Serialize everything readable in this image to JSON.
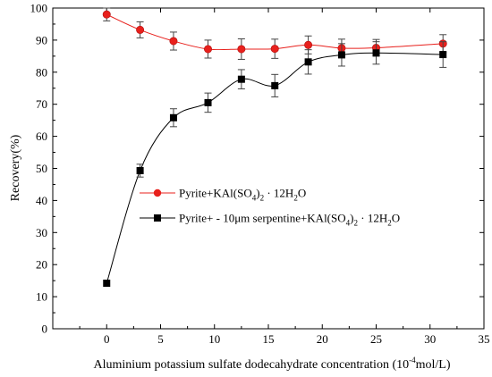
{
  "chart_data": {
    "type": "line",
    "xlabel": "Aluminium potassium sulfate dodecahydrate concentration (10",
    "xlabel_sup": "-4",
    "xlabel_tail": "mol/L)",
    "ylabel": "Recovery(%)",
    "xlim": [
      -5,
      35
    ],
    "ylim": [
      0,
      100
    ],
    "x_ticks": [
      "0",
      "5",
      "10",
      "15",
      "20",
      "25",
      "30",
      "35"
    ],
    "y_ticks": [
      "0",
      "10",
      "20",
      "30",
      "40",
      "50",
      "60",
      "70",
      "80",
      "90",
      "100"
    ],
    "grid": false,
    "legend_position": "middle-left",
    "series": [
      {
        "name": "Pyrite+KAl(SO4)2 · 12H2O",
        "legend": {
          "prefix": "Pyrite+KAl(SO",
          "s1": "4",
          "mid": ")",
          "s2": "2",
          "dot": " · ",
          "h": "12H",
          "s3": "2",
          "tail": "O"
        },
        "color": "#e8201c",
        "marker": "circle",
        "x": [
          0,
          3.1,
          6.2,
          9.4,
          12.5,
          15.6,
          18.7,
          21.8,
          25.0,
          31.2
        ],
        "y": [
          98.0,
          93.2,
          89.7,
          87.2,
          87.2,
          87.3,
          88.5,
          87.5,
          87.6,
          88.9
        ],
        "err": [
          2.0,
          2.5,
          2.8,
          2.8,
          3.2,
          3.0,
          2.8,
          2.8,
          2.6,
          2.8
        ]
      },
      {
        "name": "Pyrite+ - 10μm serpentine+KAl(SO4)2 · 12H2O",
        "legend": {
          "prefix": "Pyrite+ - 10μm serpentine+KAl(SO",
          "s1": "4",
          "mid": ")",
          "s2": "2",
          "dot": " · ",
          "h": "12H",
          "s3": "2",
          "tail": "O"
        },
        "color": "#000000",
        "marker": "square",
        "x": [
          0,
          3.1,
          6.2,
          9.4,
          12.5,
          15.6,
          18.7,
          21.8,
          25.0,
          31.2
        ],
        "y": [
          14.2,
          49.3,
          65.8,
          70.5,
          77.8,
          75.8,
          83.2,
          85.4,
          86.0,
          85.5
        ],
        "err": [
          0,
          2.0,
          2.8,
          3.0,
          3.0,
          3.5,
          3.8,
          3.5,
          3.5,
          4.0
        ]
      }
    ]
  }
}
